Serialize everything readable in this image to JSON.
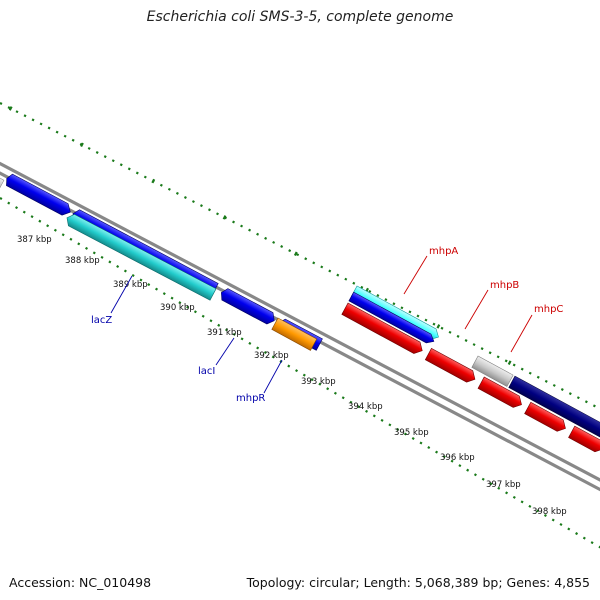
{
  "title": "Escherichia coli SMS-3-5, complete genome",
  "footer": {
    "accession": "Accession: NC_010498",
    "summary": "Topology: circular; Length: 5,068,389 bp; Genes: 4,855"
  },
  "ticks": [
    "387 kbp",
    "388 kbp",
    "389 kbp",
    "390 kbp",
    "391 kbp",
    "392 kbp",
    "393 kbp",
    "394 kbp",
    "395 kbp",
    "396 kbp",
    "397 kbp",
    "398 kbp"
  ],
  "gene_labels": {
    "lacZ": "lacZ",
    "lacI": "lacI",
    "mhpR": "mhpR",
    "mhpA": "mhpA",
    "mhpB": "mhpB",
    "mhpC": "mhpC"
  },
  "colors": {
    "backbone": "#888888",
    "tick_dots": "#1a7a1a",
    "forward_cds": "#0000ee",
    "reverse_cds": "#ee0000",
    "cyan_rna": "#22cccc",
    "light_cyan": "#55ffff",
    "orange_gene": "#ff9900",
    "grey_gene": "#c8c8c8",
    "navy_gene": "#000080",
    "blue_label": "#0000aa",
    "red_label": "#cc0000"
  }
}
